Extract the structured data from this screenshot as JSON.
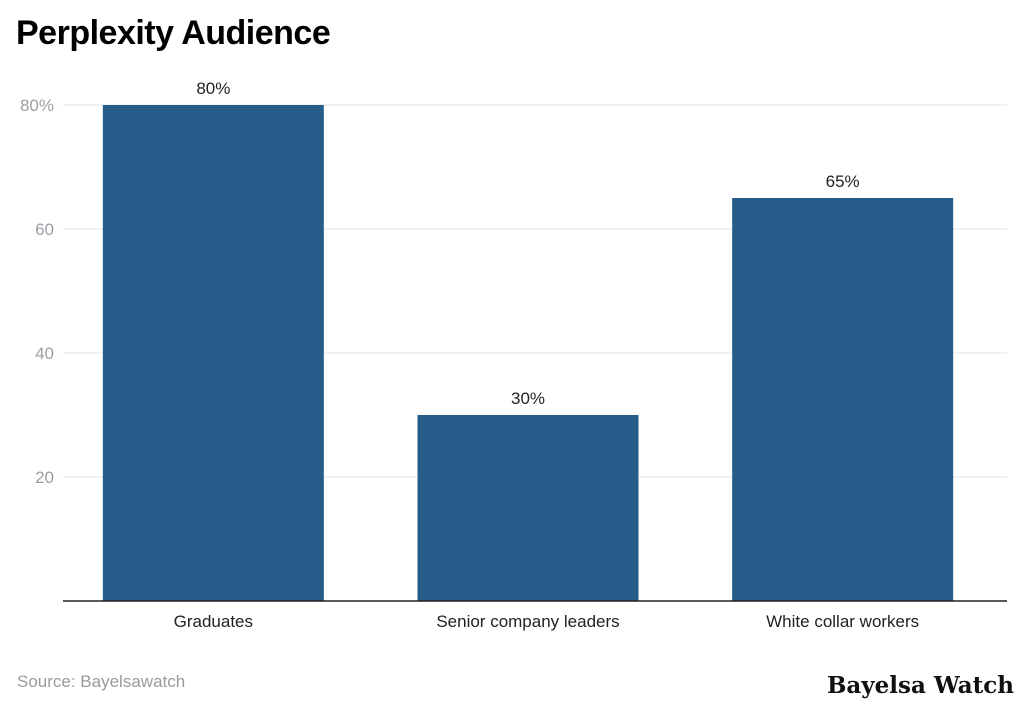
{
  "chart_data": {
    "type": "bar",
    "title": "Perplexity Audience",
    "categories": [
      "Graduates",
      "Senior company leaders",
      "White collar workers"
    ],
    "values": [
      80,
      30,
      65
    ],
    "data_labels": [
      "80%",
      "30%",
      "65%"
    ],
    "yticks": [
      20,
      40,
      60,
      80
    ],
    "ytick_labels": [
      "20",
      "40",
      "60",
      "80%"
    ],
    "ylim": [
      0,
      80
    ],
    "grid": true,
    "bar_color": "#265c8a",
    "xlabel": "",
    "ylabel": ""
  },
  "source": "Source: Bayelsawatch",
  "logo": "Bayelsa Watch"
}
